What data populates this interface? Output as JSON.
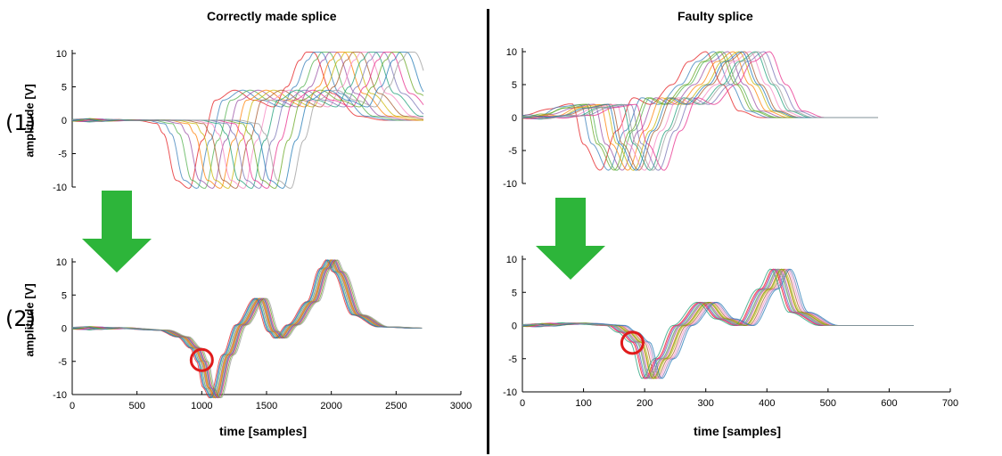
{
  "titles": {
    "left": "Correctly made splice",
    "right": "Faulty splice"
  },
  "row_labels": {
    "first": "(1)",
    "second": "(2)"
  },
  "colors": {
    "arrow": "#2db53a",
    "circle": "#e01b1b",
    "divider": "#000000",
    "series": [
      "#e41a1c",
      "#377eb8",
      "#4daf4a",
      "#984ea3",
      "#ff7f00",
      "#c9b400",
      "#a65628",
      "#f781bf",
      "#1b9e77",
      "#7570b3",
      "#e7298a",
      "#66a61e",
      "#1f78b4",
      "#999999"
    ]
  },
  "chart_data": [
    {
      "type": "line",
      "panel": "left-top",
      "row_label": "(1)",
      "title": "Correctly made splice",
      "ylabel": "amplitude [V]",
      "xlabel": "",
      "xlim": [
        0,
        2700
      ],
      "ylim": [
        -10,
        10
      ],
      "yticks": [
        "-10",
        "-5",
        "0",
        "5",
        "10"
      ],
      "xticks": [],
      "description_of_series": "14 overlapping recordings, each a shifted copy of the same pulse",
      "shifts": [
        0,
        60,
        120,
        180,
        240,
        300,
        360,
        420,
        480,
        540,
        600,
        660,
        720,
        780
      ],
      "template": {
        "x": [
          0,
          300,
          500,
          650,
          700,
          800,
          900,
          1000,
          1100,
          1250,
          1400,
          1550,
          1650,
          1750,
          1800,
          1850,
          2000,
          2200,
          2400,
          2700
        ],
        "y": [
          0,
          0,
          0,
          -0.5,
          -2,
          -9,
          -10.2,
          -3,
          3,
          4.5,
          3,
          2,
          5,
          9,
          10.2,
          10.2,
          4,
          0.6,
          0,
          0
        ]
      }
    },
    {
      "type": "line",
      "panel": "left-bottom",
      "row_label": "(2)",
      "title": "",
      "ylabel": "amplitude [V]",
      "xlabel": "time [samples]",
      "xlim": [
        0,
        3000
      ],
      "ylim": [
        -10,
        10
      ],
      "yticks": [
        "-10",
        "-5",
        "0",
        "5",
        "10"
      ],
      "xticks": [
        "0",
        "500",
        "1000",
        "1500",
        "2000",
        "2500",
        "3000"
      ],
      "description_of_series": "14 recordings after alignment, nearly coincident",
      "shifts": [
        -40,
        -25,
        -15,
        -5,
        0,
        5,
        10,
        15,
        20,
        25,
        30,
        40,
        -30,
        50
      ],
      "template": {
        "x": [
          0,
          400,
          700,
          850,
          950,
          1000,
          1050,
          1100,
          1200,
          1300,
          1450,
          1550,
          1600,
          1700,
          1850,
          1950,
          2000,
          2050,
          2200,
          2400,
          2700
        ],
        "y": [
          0,
          0,
          -0.3,
          -1.3,
          -3,
          -5,
          -9,
          -10.5,
          -4,
          0.5,
          4.5,
          -0.5,
          -1.5,
          0.5,
          4,
          9,
          10.3,
          8.5,
          2,
          0.2,
          0
        ]
      },
      "marker_circle": {
        "x": 1000,
        "y": -4.8
      }
    },
    {
      "type": "line",
      "panel": "right-top",
      "row_label": "",
      "title": "Faulty splice",
      "ylabel": "",
      "xlabel": "",
      "xlim": [
        0,
        700
      ],
      "ylim": [
        -10,
        10
      ],
      "yticks": [
        "-10",
        "-5",
        "0",
        "5",
        "10"
      ],
      "xticks": [],
      "description_of_series": "14 overlapping recordings with irregular shifts and distortions",
      "shifts": [
        -50,
        -35,
        -20,
        -10,
        0,
        10,
        20,
        30,
        40,
        55,
        65,
        -25,
        15,
        45
      ],
      "template": {
        "x": [
          0,
          60,
          100,
          140,
          160,
          190,
          220,
          250,
          280,
          320,
          350,
          380,
          410,
          440,
          480,
          550,
          640
        ],
        "y": [
          0,
          0.3,
          1.5,
          2,
          -4,
          -8,
          -2,
          3,
          2,
          5,
          8.5,
          10,
          5,
          1,
          0,
          0,
          0
        ]
      }
    },
    {
      "type": "line",
      "panel": "right-bottom",
      "row_label": "",
      "title": "",
      "ylabel": "",
      "xlabel": "time [samples]",
      "xlim": [
        0,
        700
      ],
      "ylim": [
        -10,
        10
      ],
      "yticks": [
        "-10",
        "-5",
        "0",
        "5",
        "10"
      ],
      "xticks": [
        "0",
        "100",
        "200",
        "300",
        "400",
        "500",
        "600",
        "700"
      ],
      "description_of_series": "14 recordings after alignment, still scattered",
      "shifts": [
        -10,
        -6,
        -3,
        0,
        3,
        6,
        9,
        12,
        -14,
        15,
        -8,
        4,
        18,
        -2
      ],
      "template": {
        "x": [
          0,
          100,
          150,
          170,
          190,
          210,
          230,
          260,
          300,
          330,
          360,
          400,
          420,
          450,
          500,
          640
        ],
        "y": [
          0,
          0.3,
          0,
          -1,
          -2.5,
          -8,
          -5,
          0,
          3.5,
          1,
          0,
          5.5,
          8.5,
          2,
          0,
          0
        ]
      },
      "marker_circle": {
        "x": 180,
        "y": -2.6
      }
    }
  ]
}
